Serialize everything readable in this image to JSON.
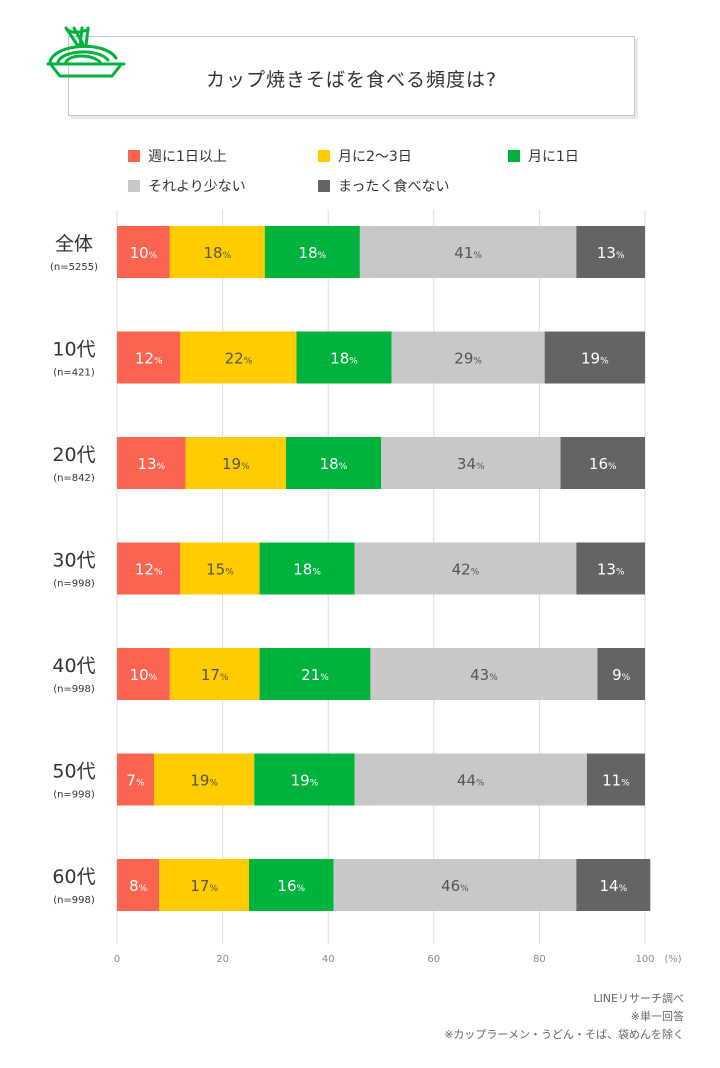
{
  "title": "カップ焼きそばを食べる頻度は?",
  "legend": [
    {
      "label": "週に1日以上",
      "color": "#fa6450"
    },
    {
      "label": "月に2〜3日",
      "color": "#ffcc00"
    },
    {
      "label": "月に1日",
      "color": "#00b33c"
    },
    {
      "label": "それより少ない",
      "color": "#c8c8c8"
    },
    {
      "label": "まったく食べない",
      "color": "#646464"
    }
  ],
  "chart_data": {
    "type": "bar",
    "orientation": "horizontal-stacked-100",
    "title": "カップ焼きそばを食べる頻度は?",
    "categories": [
      "全体",
      "10代",
      "20代",
      "30代",
      "40代",
      "50代",
      "60代"
    ],
    "sample_sizes": [
      "(n=5255)",
      "(n=421)",
      "(n=842)",
      "(n=998)",
      "(n=998)",
      "(n=998)",
      "(n=998)"
    ],
    "series": [
      {
        "name": "週に1日以上",
        "values": [
          10,
          12,
          13,
          12,
          10,
          7,
          8
        ]
      },
      {
        "name": "月に2〜3日",
        "values": [
          18,
          22,
          19,
          15,
          17,
          19,
          17
        ]
      },
      {
        "name": "月に1日",
        "values": [
          18,
          18,
          18,
          18,
          21,
          19,
          16
        ]
      },
      {
        "name": "それより少ない",
        "values": [
          41,
          29,
          34,
          42,
          43,
          44,
          46
        ]
      },
      {
        "name": "まったく食べない",
        "values": [
          13,
          19,
          16,
          13,
          9,
          11,
          14
        ]
      }
    ],
    "xlim": [
      0,
      100
    ],
    "xticks": [
      "0",
      "20",
      "40",
      "60",
      "80",
      "100"
    ],
    "xunit": "(%)",
    "value_suffix": "%",
    "grid": true,
    "legend_position": "top"
  },
  "notes": [
    "LINEリサーチ調べ",
    "※単一回答",
    "※カップラーメン・うどん・そば、袋めんを除く"
  ]
}
